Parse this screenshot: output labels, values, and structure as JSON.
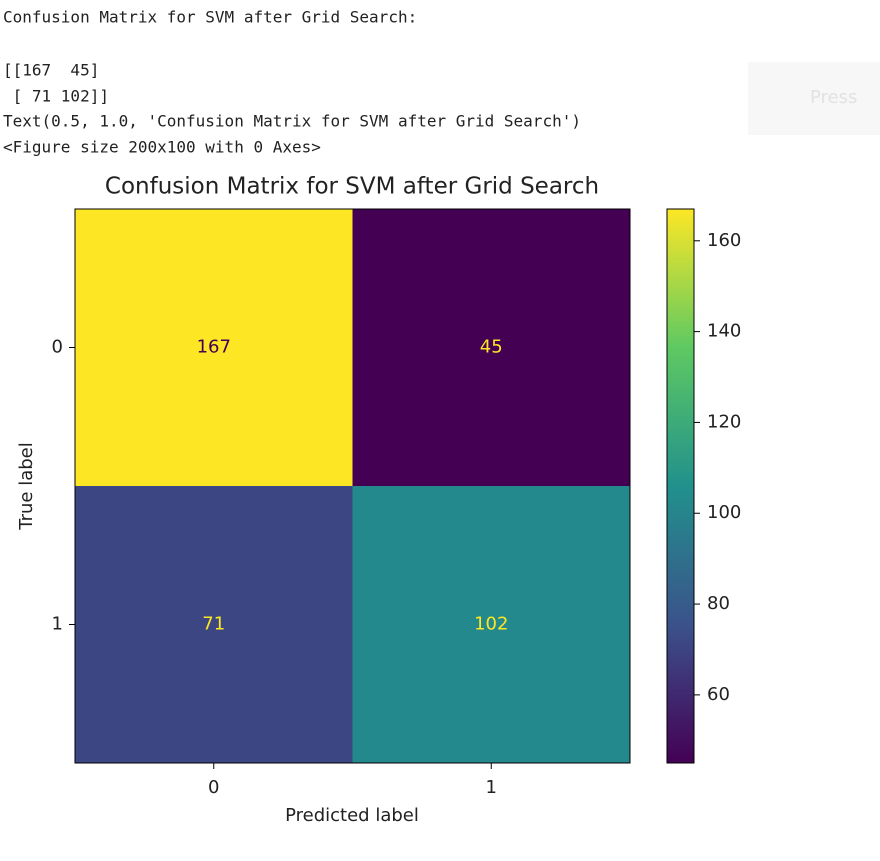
{
  "output_lines": [
    "Confusion Matrix for SVM after Grid Search:",
    "[[167  45]",
    " [ 71 102]]",
    "Text(0.5, 1.0, 'Confusion Matrix for SVM after Grid Search')",
    "<Figure size 200x100 with 0 Axes>"
  ],
  "press_button": "Press",
  "chart_data": {
    "type": "heatmap",
    "title": "Confusion Matrix for SVM after Grid Search",
    "x_label": "Predicted label",
    "y_label": "True label",
    "x_categories": [
      "0",
      "1"
    ],
    "y_categories": [
      "0",
      "1"
    ],
    "values": [
      [
        167,
        45
      ],
      [
        71,
        102
      ]
    ],
    "colormap": "viridis",
    "clim": [
      45,
      167
    ],
    "cticks": [
      60,
      80,
      100,
      120,
      140,
      160
    ]
  }
}
